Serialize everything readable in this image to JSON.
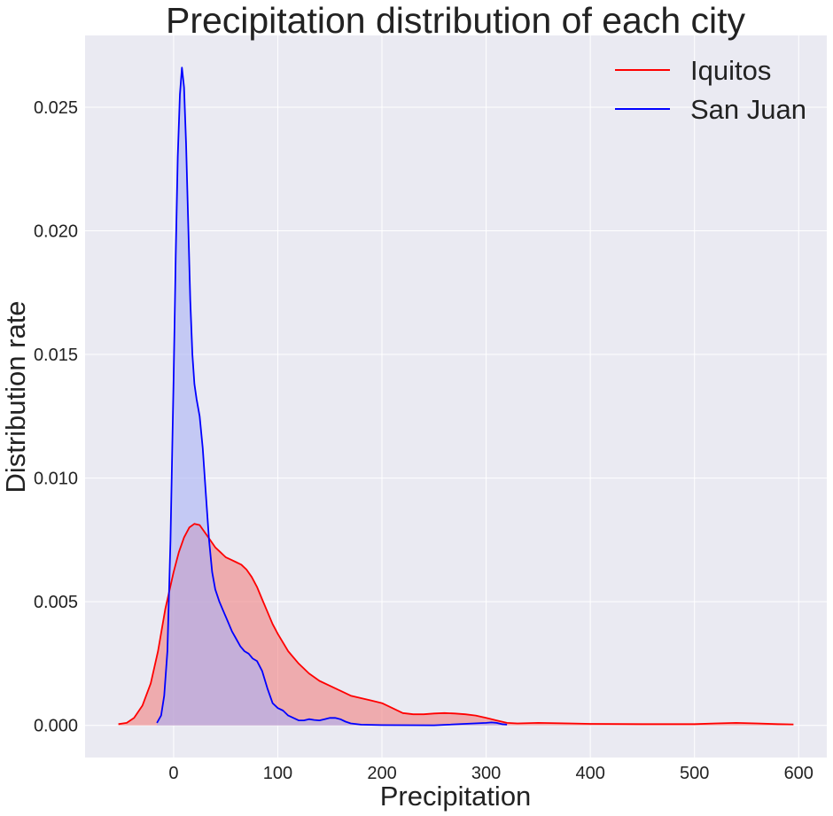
{
  "chart_data": {
    "type": "area",
    "title": "Precipitation distribution of each city",
    "xlabel": "Precipitation",
    "ylabel": "Distribution rate",
    "xlim": [
      -85,
      627
    ],
    "ylim": [
      -0.0013,
      0.0279
    ],
    "x_ticks": [
      0,
      100,
      200,
      300,
      400,
      500,
      600
    ],
    "y_ticks": [
      0.0,
      0.005,
      0.01,
      0.015,
      0.02,
      0.025
    ],
    "x_tick_labels": [
      "0",
      "100",
      "200",
      "300",
      "400",
      "500",
      "600"
    ],
    "y_tick_labels": [
      "0.000",
      "0.005",
      "0.010",
      "0.015",
      "0.020",
      "0.025"
    ],
    "grid": true,
    "legend_position": "top-right",
    "plot_background": "#eaeaf2",
    "series": [
      {
        "name": "Iquitos",
        "color": "#ff0000",
        "fill": "#f08080",
        "x": [
          -53,
          -45,
          -38,
          -30,
          -22,
          -15,
          -8,
          0,
          5,
          10,
          15,
          20,
          25,
          30,
          35,
          40,
          45,
          50,
          55,
          60,
          65,
          70,
          75,
          80,
          85,
          90,
          95,
          100,
          110,
          120,
          130,
          140,
          150,
          160,
          170,
          180,
          190,
          200,
          210,
          220,
          230,
          240,
          250,
          260,
          270,
          280,
          290,
          300,
          310,
          320,
          330,
          350,
          380,
          400,
          450,
          500,
          520,
          540,
          560,
          580,
          595
        ],
        "y": [
          5e-05,
          0.0001,
          0.0003,
          0.0008,
          0.0017,
          0.003,
          0.0047,
          0.0062,
          0.007,
          0.0076,
          0.008,
          0.00815,
          0.0081,
          0.0078,
          0.0075,
          0.0072,
          0.007,
          0.0068,
          0.0067,
          0.0066,
          0.0065,
          0.0063,
          0.006,
          0.0056,
          0.0051,
          0.0046,
          0.0041,
          0.0037,
          0.003,
          0.0025,
          0.0021,
          0.0018,
          0.0016,
          0.0014,
          0.0012,
          0.0011,
          0.001,
          0.0009,
          0.0007,
          0.0005,
          0.00045,
          0.00045,
          0.00048,
          0.0005,
          0.00048,
          0.00045,
          0.0004,
          0.0003,
          0.0002,
          0.0001,
          8e-05,
          0.0001,
          8e-05,
          6e-05,
          5e-05,
          5e-05,
          8e-05,
          0.0001,
          8e-05,
          5e-05,
          4e-05
        ]
      },
      {
        "name": "San Juan",
        "color": "#0000ff",
        "fill": "#aab2f5",
        "x": [
          -16,
          -12,
          -9,
          -6,
          -3,
          0,
          2,
          4,
          6,
          8,
          10,
          12,
          14,
          16,
          18,
          20,
          22,
          25,
          28,
          31,
          34,
          37,
          40,
          44,
          48,
          52,
          56,
          60,
          64,
          68,
          72,
          76,
          80,
          85,
          90,
          95,
          100,
          105,
          110,
          115,
          120,
          125,
          130,
          135,
          140,
          145,
          150,
          155,
          160,
          165,
          170,
          180,
          200,
          250,
          300,
          305,
          310,
          315,
          320
        ],
        "y": [
          0.0001,
          0.0004,
          0.0012,
          0.003,
          0.0075,
          0.014,
          0.019,
          0.023,
          0.0255,
          0.0266,
          0.0258,
          0.0235,
          0.0203,
          0.0172,
          0.015,
          0.0138,
          0.0132,
          0.0125,
          0.0112,
          0.0093,
          0.0075,
          0.0062,
          0.0055,
          0.005,
          0.0046,
          0.0042,
          0.0038,
          0.0035,
          0.0032,
          0.003,
          0.0029,
          0.0027,
          0.0026,
          0.0022,
          0.0015,
          0.0009,
          0.0007,
          0.0006,
          0.0004,
          0.0003,
          0.0002,
          0.0002,
          0.00025,
          0.00022,
          0.0002,
          0.00025,
          0.0003,
          0.0003,
          0.00025,
          0.00015,
          8e-05,
          3e-05,
          1e-05,
          5e-06,
          0.0001,
          0.00012,
          0.0001,
          5e-05,
          3e-05
        ]
      }
    ]
  }
}
